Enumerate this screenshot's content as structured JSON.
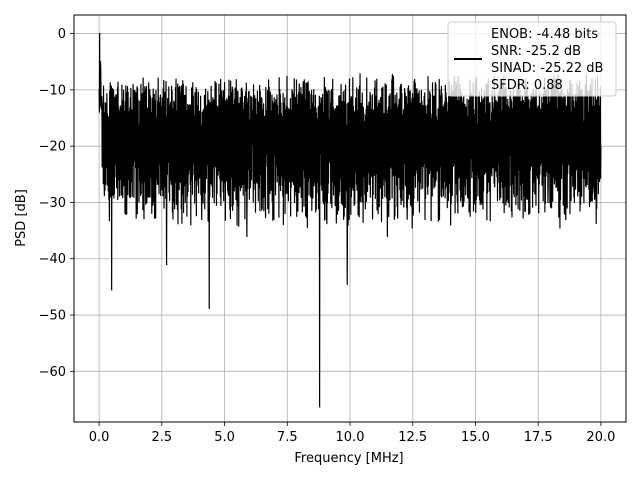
{
  "chart_data": {
    "type": "line",
    "title": "",
    "xlabel": "Frequency [MHz]",
    "ylabel": "PSD [dB]",
    "xlim": [
      -1.0,
      21.0
    ],
    "ylim": [
      -69.0,
      3.3
    ],
    "xticks": [
      0.0,
      2.5,
      5.0,
      7.5,
      10.0,
      12.5,
      15.0,
      17.5,
      20.0
    ],
    "xtick_labels": [
      "0.0",
      "2.5",
      "5.0",
      "7.5",
      "10.0",
      "12.5",
      "15.0",
      "17.5",
      "20.0"
    ],
    "yticks": [
      0,
      -10,
      -20,
      -30,
      -40,
      -50,
      -60
    ],
    "ytick_labels": [
      "0",
      "−10",
      "−20",
      "−30",
      "−40",
      "−50",
      "−60"
    ],
    "grid": true,
    "legend": {
      "placement": "top-right",
      "entries": [
        "ENOB: -4.48 bits",
        "SNR: -25.2 dB",
        "SINAD: -25.22 dB",
        "SFDR: 0.88"
      ]
    },
    "series": [
      {
        "color": "#000000",
        "description": "noise-like PSD spectrum, sampled envelope points",
        "x": [
          0.0,
          0.03,
          0.06,
          0.1,
          0.15,
          0.2,
          0.3,
          0.4,
          0.5,
          0.7,
          1.0,
          1.3,
          1.6,
          2.0,
          2.3,
          2.7,
          3.0,
          3.4,
          3.8,
          4.1,
          4.4,
          4.8,
          5.2,
          5.5,
          5.9,
          6.2,
          6.6,
          7.0,
          7.4,
          7.8,
          8.2,
          8.5,
          8.8,
          9.2,
          9.6,
          9.9,
          10.3,
          10.7,
          11.1,
          11.5,
          11.9,
          12.3,
          12.7,
          13.0,
          13.5,
          13.9,
          14.3,
          14.7,
          15.1,
          15.5,
          15.9,
          16.3,
          16.7,
          17.1,
          17.5,
          17.9,
          18.3,
          18.6,
          19.0,
          19.4,
          19.7,
          20.0
        ],
        "y": [
          -10,
          0,
          -5,
          -13,
          -22,
          -26,
          -19,
          -25,
          -45.5,
          -21,
          -27,
          -17,
          -25,
          -29,
          -21,
          -41,
          -18,
          -27,
          -22,
          -33,
          -48.8,
          -22,
          -27,
          -20,
          -36,
          -22,
          -29,
          -19,
          -25,
          -30,
          -22,
          -26,
          -66.3,
          -22,
          -28,
          -44.5,
          -20,
          -26,
          -21,
          -36,
          -23,
          -29,
          -20,
          -33,
          -22,
          -27,
          -23,
          -29,
          -21,
          -28,
          -22,
          -30,
          -25,
          -28,
          -22,
          -30,
          -24,
          -33,
          -21,
          -27,
          -24,
          -20
        ]
      }
    ]
  }
}
